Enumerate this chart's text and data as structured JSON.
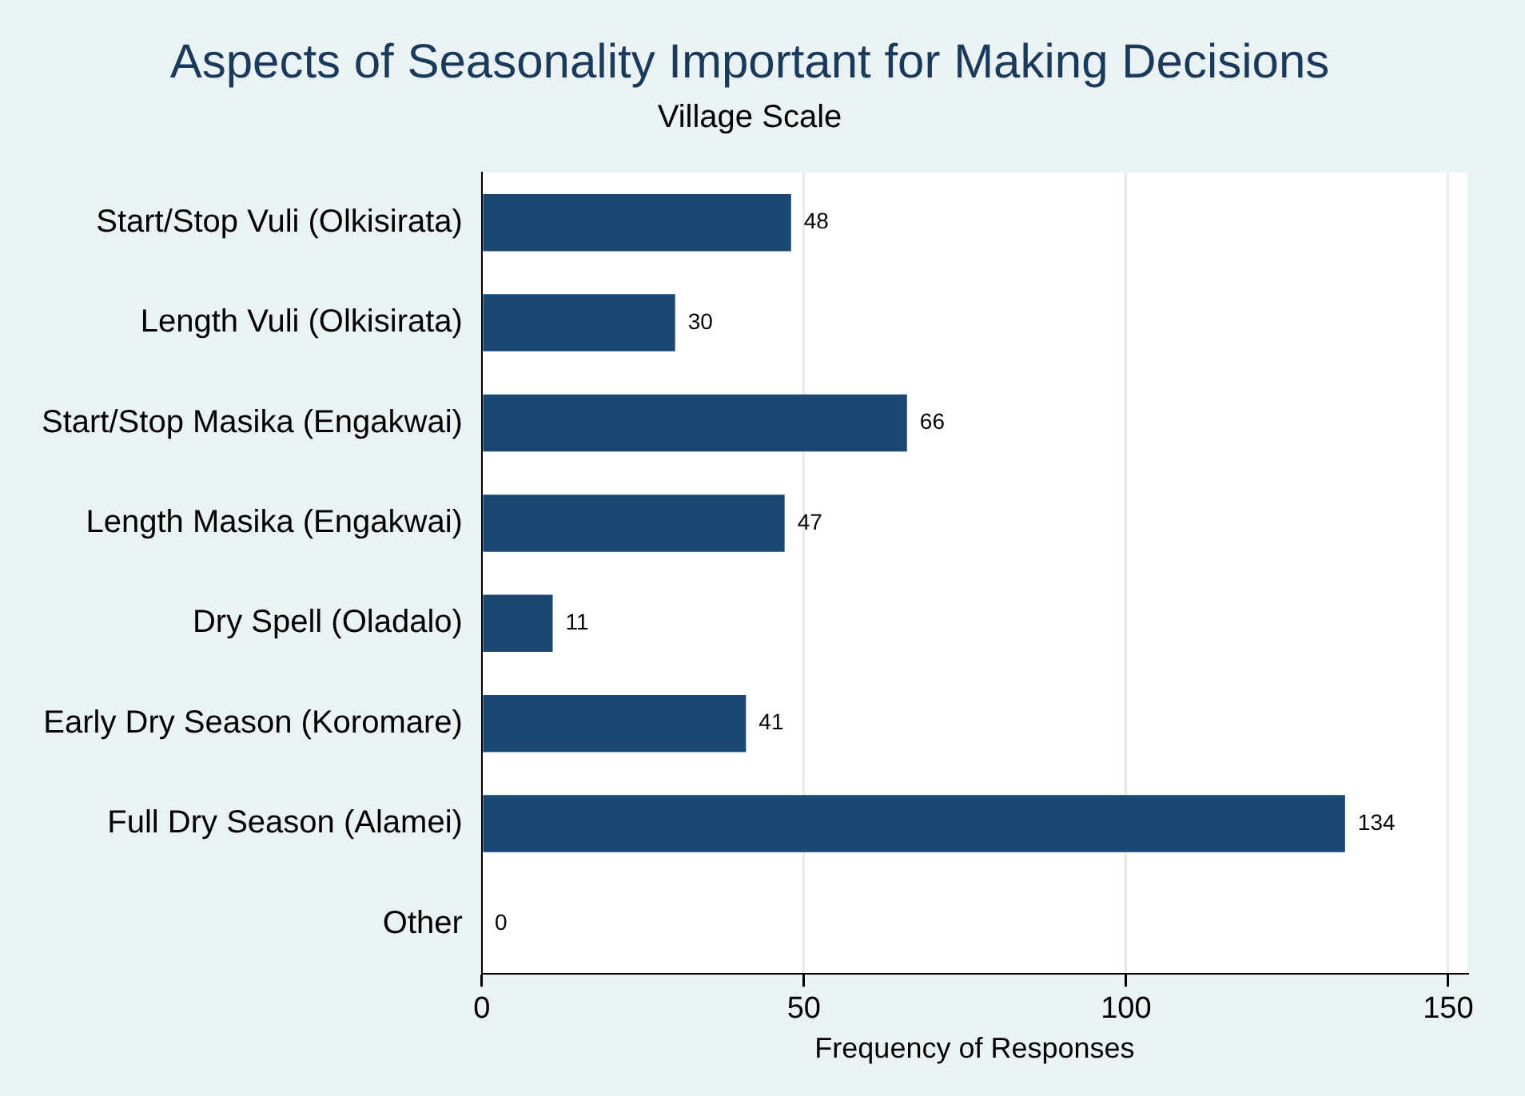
{
  "chart_data": {
    "type": "bar",
    "orientation": "horizontal",
    "title": "Aspects of Seasonality Important for Making Decisions",
    "subtitle": "Village Scale",
    "xlabel": "Frequency of Responses",
    "categories": [
      "Start/Stop Vuli (Olkisirata)",
      "Length Vuli (Olkisirata)",
      "Start/Stop Masika (Engakwai)",
      "Length Masika (Engakwai)",
      "Dry Spell (Oladalo)",
      "Early Dry Season (Koromare)",
      "Full Dry Season (Alamei)",
      "Other"
    ],
    "values": [
      48,
      30,
      66,
      47,
      11,
      41,
      134,
      0
    ],
    "color": "#1a4873",
    "xlim": [
      0,
      153
    ],
    "xticks": [
      0,
      50,
      100,
      150
    ],
    "grid": "x",
    "data_labels": true,
    "legend": false
  }
}
